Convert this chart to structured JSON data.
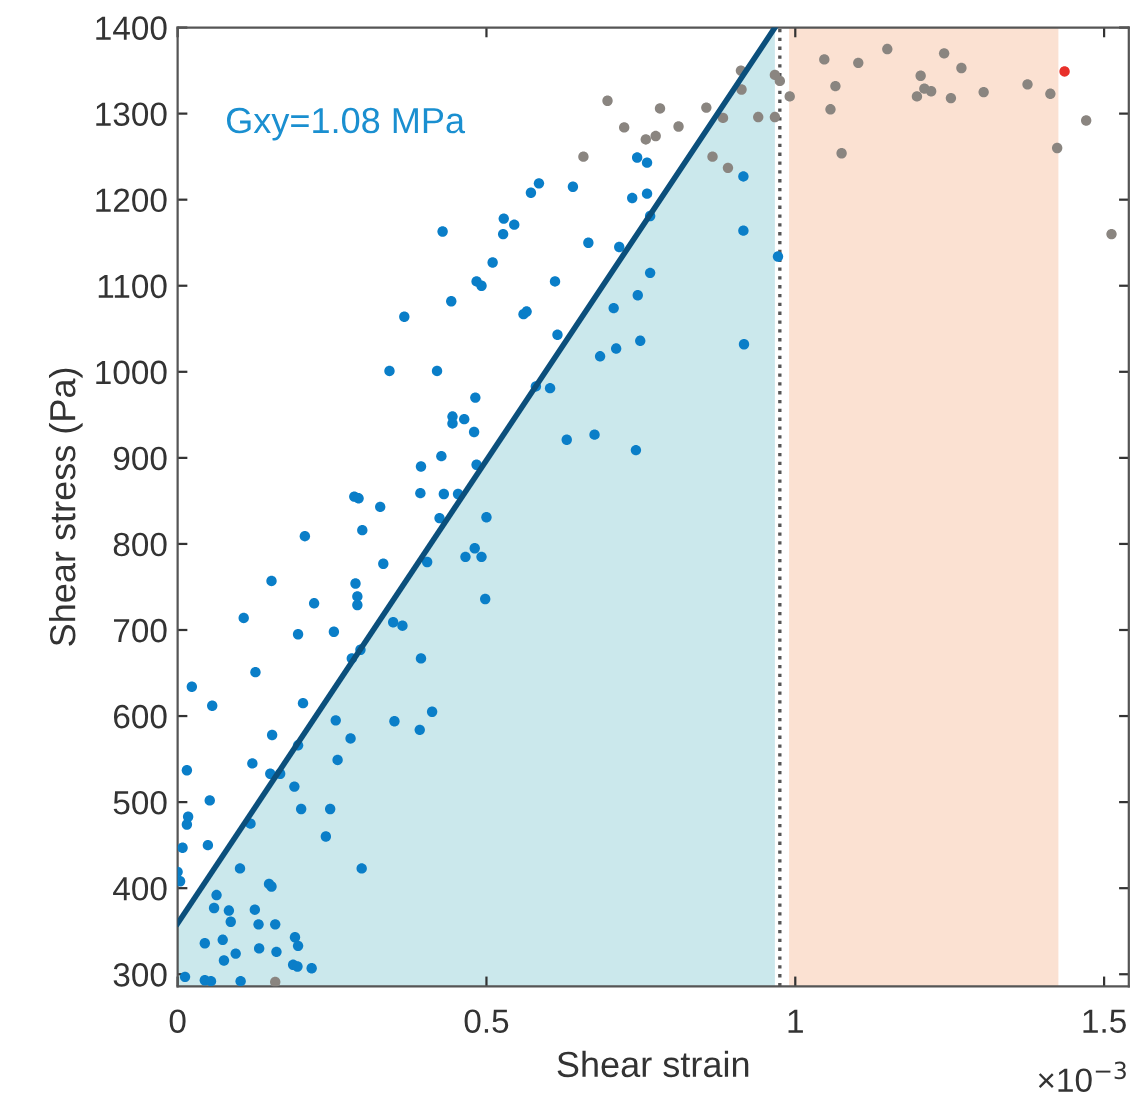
{
  "chart_data": {
    "type": "scatter",
    "xlabel": "Shear strain",
    "ylabel": "Shear stress (Pa)",
    "xlim": [
      0,
      1.54
    ],
    "ylim": [
      286,
      1400
    ],
    "xticks": [
      0,
      0.5,
      1,
      1.5
    ],
    "yticks": [
      300,
      400,
      500,
      600,
      700,
      800,
      900,
      1000,
      1100,
      1200,
      1300,
      1400
    ],
    "grid": false,
    "legend": false,
    "marker": "circle",
    "annotations": [
      "Gxy=1.08 MPa",
      "×10$^{−3}$"
    ],
    "bands": [
      {
        "axis": "x",
        "from": 0.99,
        "to": 1.426,
        "color": "#fbe1d2"
      }
    ],
    "ref_lines": [
      {
        "axis": "x",
        "value": 0.975,
        "color": "#555555",
        "line_style": "dotted"
      }
    ],
    "series": [
      {
        "type": "area",
        "color": "#0b4f7c",
        "marker": "none",
        "x": [
          0,
          0.967
        ],
        "values": [
          359,
          1400
        ]
      },
      {
        "color": "#0a7ec8",
        "x": [
          0.429,
          0.367,
          0.343,
          0.42,
          0.443,
          0.445,
          0.445,
          0.464,
          0.482,
          0.48,
          0.427,
          0.394,
          0.484,
          0.393,
          0.431,
          0.454,
          0.484,
          0.492,
          0.51,
          0.528,
          0.527,
          0.545,
          0.572,
          0.585,
          0.64,
          0.56,
          0.565,
          0.611,
          0.665,
          0.615,
          0.58,
          0.603,
          0.684,
          0.71,
          0.706,
          0.715,
          0.63,
          0.675,
          0.742,
          0.749,
          0.745,
          0.765,
          0.744,
          0.76,
          0.736,
          0.76,
          0.765,
          0.916,
          0.916,
          0.972,
          0.917,
          0.286,
          0.293,
          0.328,
          0.424,
          0.5,
          0.206,
          0.299,
          0.333,
          0.466,
          0.481,
          0.492,
          0.404,
          0.498,
          0.152,
          0.288,
          0.291,
          0.291,
          0.221,
          0.107,
          0.195,
          0.253,
          0.349,
          0.364,
          0.282,
          0.296,
          0.394,
          0.126,
          0.023,
          0.056,
          0.203,
          0.153,
          0.256,
          0.351,
          0.412,
          0.392,
          0.28,
          0.195,
          0.121,
          0.259,
          0.015,
          0.15,
          0.166,
          0.189,
          0.052,
          0.2,
          0.247,
          0.017,
          0.015,
          0.049,
          0.118,
          0.24,
          0.008,
          0.0,
          0.004,
          0.101,
          0.298,
          0.063,
          0.059,
          0.083,
          0.086,
          0.125,
          0.131,
          0.148,
          0.152,
          0.158,
          0.044,
          0.073,
          0.075,
          0.094,
          0.132,
          0.16,
          0.19,
          0.195,
          0.187,
          0.194,
          0.217,
          0.012,
          0.044,
          0.054,
          0.102
        ],
        "values": [
          1163,
          1064,
          1001,
          1001,
          1082,
          948,
          940,
          945,
          970,
          930,
          902,
          890,
          892,
          859,
          858,
          858,
          1105,
          1100,
          1127,
          1178,
          1160,
          1171,
          1208,
          1219,
          1215,
          1067,
          1070,
          1105,
          1150,
          1043,
          983,
          981,
          1018,
          1027,
          1074,
          1145,
          921,
          927,
          909,
          1036,
          1089,
          1115,
          1249,
          1243,
          1202,
          1207,
          1181,
          1227,
          1164,
          1134,
          1032,
          855,
          853,
          843,
          830,
          831,
          809,
          816,
          777,
          785,
          795,
          785,
          779,
          736,
          757,
          754,
          739,
          729,
          731,
          714,
          695,
          698,
          709,
          705,
          667,
          677,
          667,
          651,
          634,
          612,
          615,
          578,
          595,
          594,
          605,
          584,
          574,
          566,
          545,
          549,
          537,
          533,
          533,
          518,
          502,
          492,
          492,
          483,
          474,
          450,
          475,
          460,
          447,
          419,
          408,
          423,
          423,
          392,
          377,
          374,
          361,
          375,
          358,
          405,
          402,
          358,
          336,
          340,
          316,
          324,
          330,
          326,
          343,
          333,
          311,
          309,
          307,
          297,
          293,
          292,
          292
        ]
      },
      {
        "color": "#8a8580",
        "x": [
          0.696,
          0.723,
          0.657,
          0.912,
          0.913,
          0.967,
          0.975,
          0.991,
          0.781,
          0.758,
          0.774,
          0.811,
          0.856,
          0.883,
          0.94,
          0.967,
          0.866,
          0.891,
          1.047,
          1.102,
          1.149,
          1.241,
          1.269,
          1.203,
          1.209,
          1.22,
          1.197,
          1.252,
          1.305,
          1.376,
          1.413,
          1.065,
          1.057,
          1.075,
          1.424,
          1.471,
          1.512,
          0.158
        ],
        "values": [
          1315,
          1284,
          1250,
          1350,
          1328,
          1345,
          1338,
          1320,
          1306,
          1270,
          1274,
          1285,
          1307,
          1295,
          1296,
          1296,
          1250,
          1237,
          1363,
          1359,
          1375,
          1370,
          1353,
          1344,
          1329,
          1326,
          1320,
          1318,
          1325,
          1334,
          1323,
          1332,
          1305,
          1254,
          1260,
          1292,
          1160,
          291
        ]
      },
      {
        "color": "#e8302a",
        "x": [
          1.436
        ],
        "values": [
          1349
        ]
      }
    ]
  }
}
